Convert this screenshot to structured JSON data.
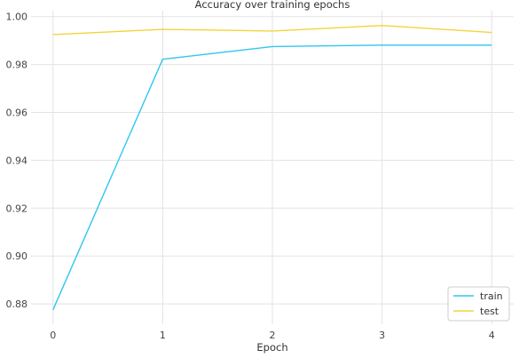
{
  "chart_data": {
    "type": "line",
    "title": "Accuracy over training epochs",
    "xlabel": "Epoch",
    "ylabel": "",
    "x": [
      0,
      1,
      2,
      3,
      4
    ],
    "xticks": [
      "0",
      "1",
      "2",
      "3",
      "4"
    ],
    "yticks": [
      "0.88",
      "0.90",
      "0.92",
      "0.94",
      "0.96",
      "0.98",
      "1.00"
    ],
    "ylim": [
      0.8715,
      1.0025
    ],
    "xlim": [
      -0.2,
      4.2
    ],
    "grid": true,
    "legend_position": "lower-right",
    "series": [
      {
        "name": "train",
        "color": "#2ec7f0",
        "values": [
          0.8775,
          0.9822,
          0.9875,
          0.9881,
          0.9881
        ]
      },
      {
        "name": "test",
        "color": "#f2d43a",
        "values": [
          0.9925,
          0.9947,
          0.994,
          0.9963,
          0.9934
        ]
      }
    ]
  }
}
